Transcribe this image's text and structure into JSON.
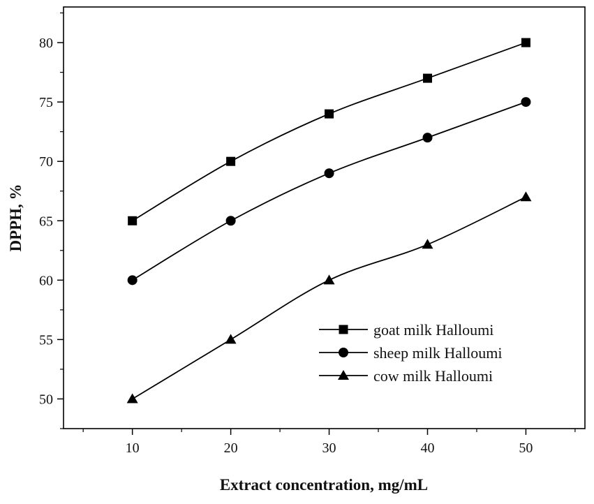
{
  "chart_data": {
    "type": "line",
    "x": [
      10,
      20,
      30,
      40,
      50
    ],
    "series": [
      {
        "name": "goat milk Halloumi",
        "marker": "square",
        "values": [
          65,
          70,
          74,
          77,
          80
        ]
      },
      {
        "name": "sheep milk Halloumi",
        "marker": "circle",
        "values": [
          60,
          65,
          69,
          72,
          75
        ]
      },
      {
        "name": "cow milk Halloumi",
        "marker": "triangle",
        "values": [
          50,
          55,
          60,
          63,
          67
        ]
      }
    ],
    "xlabel": "Extract concentration, mg/mL",
    "ylabel": "DPPH, %",
    "xlim": [
      3,
      56
    ],
    "ylim": [
      47.5,
      83
    ],
    "xticks": [
      10,
      20,
      30,
      40,
      50
    ],
    "yticks": [
      50,
      55,
      60,
      65,
      70,
      75,
      80
    ],
    "grid": false,
    "legend_position": "bottom-right",
    "line_color": "#000000",
    "smooth_lines": true
  }
}
